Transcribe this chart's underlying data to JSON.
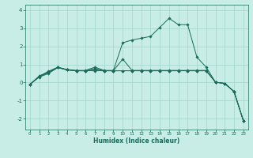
{
  "xlabel": "Humidex (Indice chaleur)",
  "background_color": "#c8ece6",
  "grid_color": "#a0d4cc",
  "line_color": "#1a6b5a",
  "xlim": [
    -0.5,
    23.5
  ],
  "ylim": [
    -2.6,
    4.3
  ],
  "xticks": [
    0,
    1,
    2,
    3,
    4,
    5,
    6,
    7,
    8,
    9,
    10,
    11,
    12,
    13,
    14,
    15,
    16,
    17,
    18,
    19,
    20,
    21,
    22,
    23
  ],
  "yticks": [
    -2,
    -1,
    0,
    1,
    2,
    3,
    4
  ],
  "lines": [
    {
      "x": [
        0,
        1,
        2,
        3,
        4,
        5,
        6,
        7,
        8,
        9,
        10,
        11,
        12,
        13,
        14,
        15,
        16,
        17,
        18,
        19,
        20,
        21,
        22,
        23
      ],
      "y": [
        -0.1,
        0.35,
        0.62,
        0.85,
        0.72,
        0.67,
        0.67,
        0.85,
        0.67,
        0.67,
        2.2,
        2.35,
        2.45,
        2.55,
        3.05,
        3.55,
        3.2,
        3.2,
        1.4,
        0.85,
        0.02,
        -0.05,
        -0.5,
        -2.1
      ]
    },
    {
      "x": [
        0,
        1,
        2,
        3,
        4,
        5,
        6,
        7,
        8,
        9,
        10,
        11,
        12,
        13,
        14,
        15,
        16,
        17,
        18,
        19,
        20,
        21,
        22,
        23
      ],
      "y": [
        -0.1,
        0.35,
        0.58,
        0.83,
        0.7,
        0.65,
        0.65,
        0.78,
        0.65,
        0.65,
        1.3,
        0.67,
        0.67,
        0.67,
        0.67,
        0.67,
        0.67,
        0.67,
        0.67,
        0.67,
        0.02,
        -0.05,
        -0.5,
        -2.1
      ]
    },
    {
      "x": [
        0,
        1,
        2,
        3,
        4,
        5,
        6,
        7,
        8,
        9,
        10,
        11,
        12,
        13,
        14,
        15,
        16,
        17,
        18,
        19,
        20,
        21,
        22,
        23
      ],
      "y": [
        -0.1,
        0.32,
        0.55,
        0.83,
        0.7,
        0.65,
        0.65,
        0.7,
        0.65,
        0.65,
        0.65,
        0.65,
        0.65,
        0.65,
        0.65,
        0.65,
        0.65,
        0.65,
        0.65,
        0.65,
        0.02,
        -0.05,
        -0.5,
        -2.1
      ]
    },
    {
      "x": [
        0,
        1,
        2,
        3,
        4,
        5,
        6,
        7,
        8,
        9,
        10,
        11,
        12,
        13,
        14,
        15,
        16,
        17,
        18,
        19,
        20,
        21,
        22,
        23
      ],
      "y": [
        -0.1,
        0.3,
        0.5,
        0.83,
        0.7,
        0.65,
        0.65,
        0.65,
        0.65,
        0.65,
        0.65,
        0.65,
        0.65,
        0.65,
        0.65,
        0.65,
        0.65,
        0.65,
        0.65,
        0.65,
        0.02,
        -0.05,
        -0.5,
        -2.1
      ]
    }
  ]
}
